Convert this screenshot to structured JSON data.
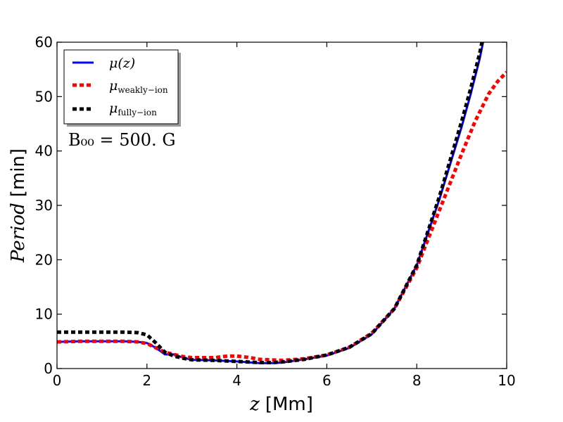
{
  "chart_data": {
    "type": "line",
    "xlabel_symbol": "z",
    "xlabel_unit": "[Mm]",
    "ylabel_symbol": "Period",
    "ylabel_unit": "[min]",
    "xlim": [
      0,
      10
    ],
    "ylim": [
      0,
      60
    ],
    "xticks": [
      0,
      2,
      4,
      6,
      8,
      10
    ],
    "yticks": [
      0,
      10,
      20,
      30,
      40,
      50,
      60
    ],
    "grid": false,
    "legend_position": "top-left",
    "annotation": "B₀₀ = 500. G",
    "series": [
      {
        "name": "μ(z)",
        "legend_symbol": "μ",
        "legend_sub": "(z)",
        "color": "#0000ff",
        "style": "solid",
        "x": [
          0,
          0.5,
          1.0,
          1.5,
          1.8,
          2.0,
          2.2,
          2.4,
          2.6,
          2.8,
          3.0,
          3.5,
          4.0,
          4.5,
          4.8,
          5.0,
          5.5,
          6.0,
          6.5,
          7.0,
          7.5,
          8.0,
          8.5,
          9.0,
          9.2,
          9.4,
          9.5
        ],
        "y": [
          4.9,
          5.0,
          5.0,
          5.0,
          4.9,
          4.7,
          3.8,
          2.6,
          2.6,
          2.0,
          1.6,
          1.5,
          1.3,
          1.0,
          1.0,
          1.1,
          1.7,
          2.4,
          3.8,
          6.3,
          11.0,
          19.0,
          31.0,
          44.5,
          50.5,
          57.0,
          61.0
        ]
      },
      {
        "name": "μ weakly-ion",
        "legend_symbol": "μ",
        "legend_sub": "weakly−ion",
        "color": "#ff0000",
        "style": "dashed",
        "x": [
          0,
          0.5,
          1.0,
          1.5,
          1.8,
          2.0,
          2.2,
          2.4,
          2.6,
          2.8,
          3.0,
          3.5,
          3.8,
          4.0,
          4.3,
          4.5,
          5.0,
          5.5,
          6.0,
          6.5,
          7.0,
          7.5,
          8.0,
          8.5,
          9.0,
          9.3,
          9.6,
          9.8,
          10.0
        ],
        "y": [
          4.9,
          5.0,
          5.0,
          5.0,
          4.9,
          4.6,
          3.8,
          3.0,
          2.6,
          2.2,
          2.0,
          2.0,
          2.3,
          2.3,
          2.0,
          1.7,
          1.5,
          1.8,
          2.5,
          3.9,
          6.5,
          11.0,
          18.5,
          29.0,
          39.5,
          45.5,
          50.5,
          52.8,
          54.5
        ]
      },
      {
        "name": "μ fully-ion",
        "legend_symbol": "μ",
        "legend_sub": "fully−ion",
        "color": "#000000",
        "style": "dashed",
        "x": [
          0,
          0.5,
          1.0,
          1.5,
          1.8,
          2.0,
          2.2,
          2.4,
          2.6,
          2.8,
          3.0,
          3.5,
          4.0,
          4.5,
          4.8,
          5.0,
          5.5,
          6.0,
          6.5,
          7.0,
          7.5,
          8.0,
          8.5,
          9.0,
          9.2,
          9.4,
          9.5
        ],
        "y": [
          6.7,
          6.7,
          6.7,
          6.7,
          6.6,
          6.2,
          4.7,
          3.0,
          2.3,
          1.9,
          1.6,
          1.5,
          1.3,
          1.1,
          1.1,
          1.2,
          1.7,
          2.5,
          3.9,
          6.4,
          11.0,
          19.0,
          31.5,
          45.5,
          51.5,
          58.0,
          62.0
        ]
      }
    ]
  }
}
